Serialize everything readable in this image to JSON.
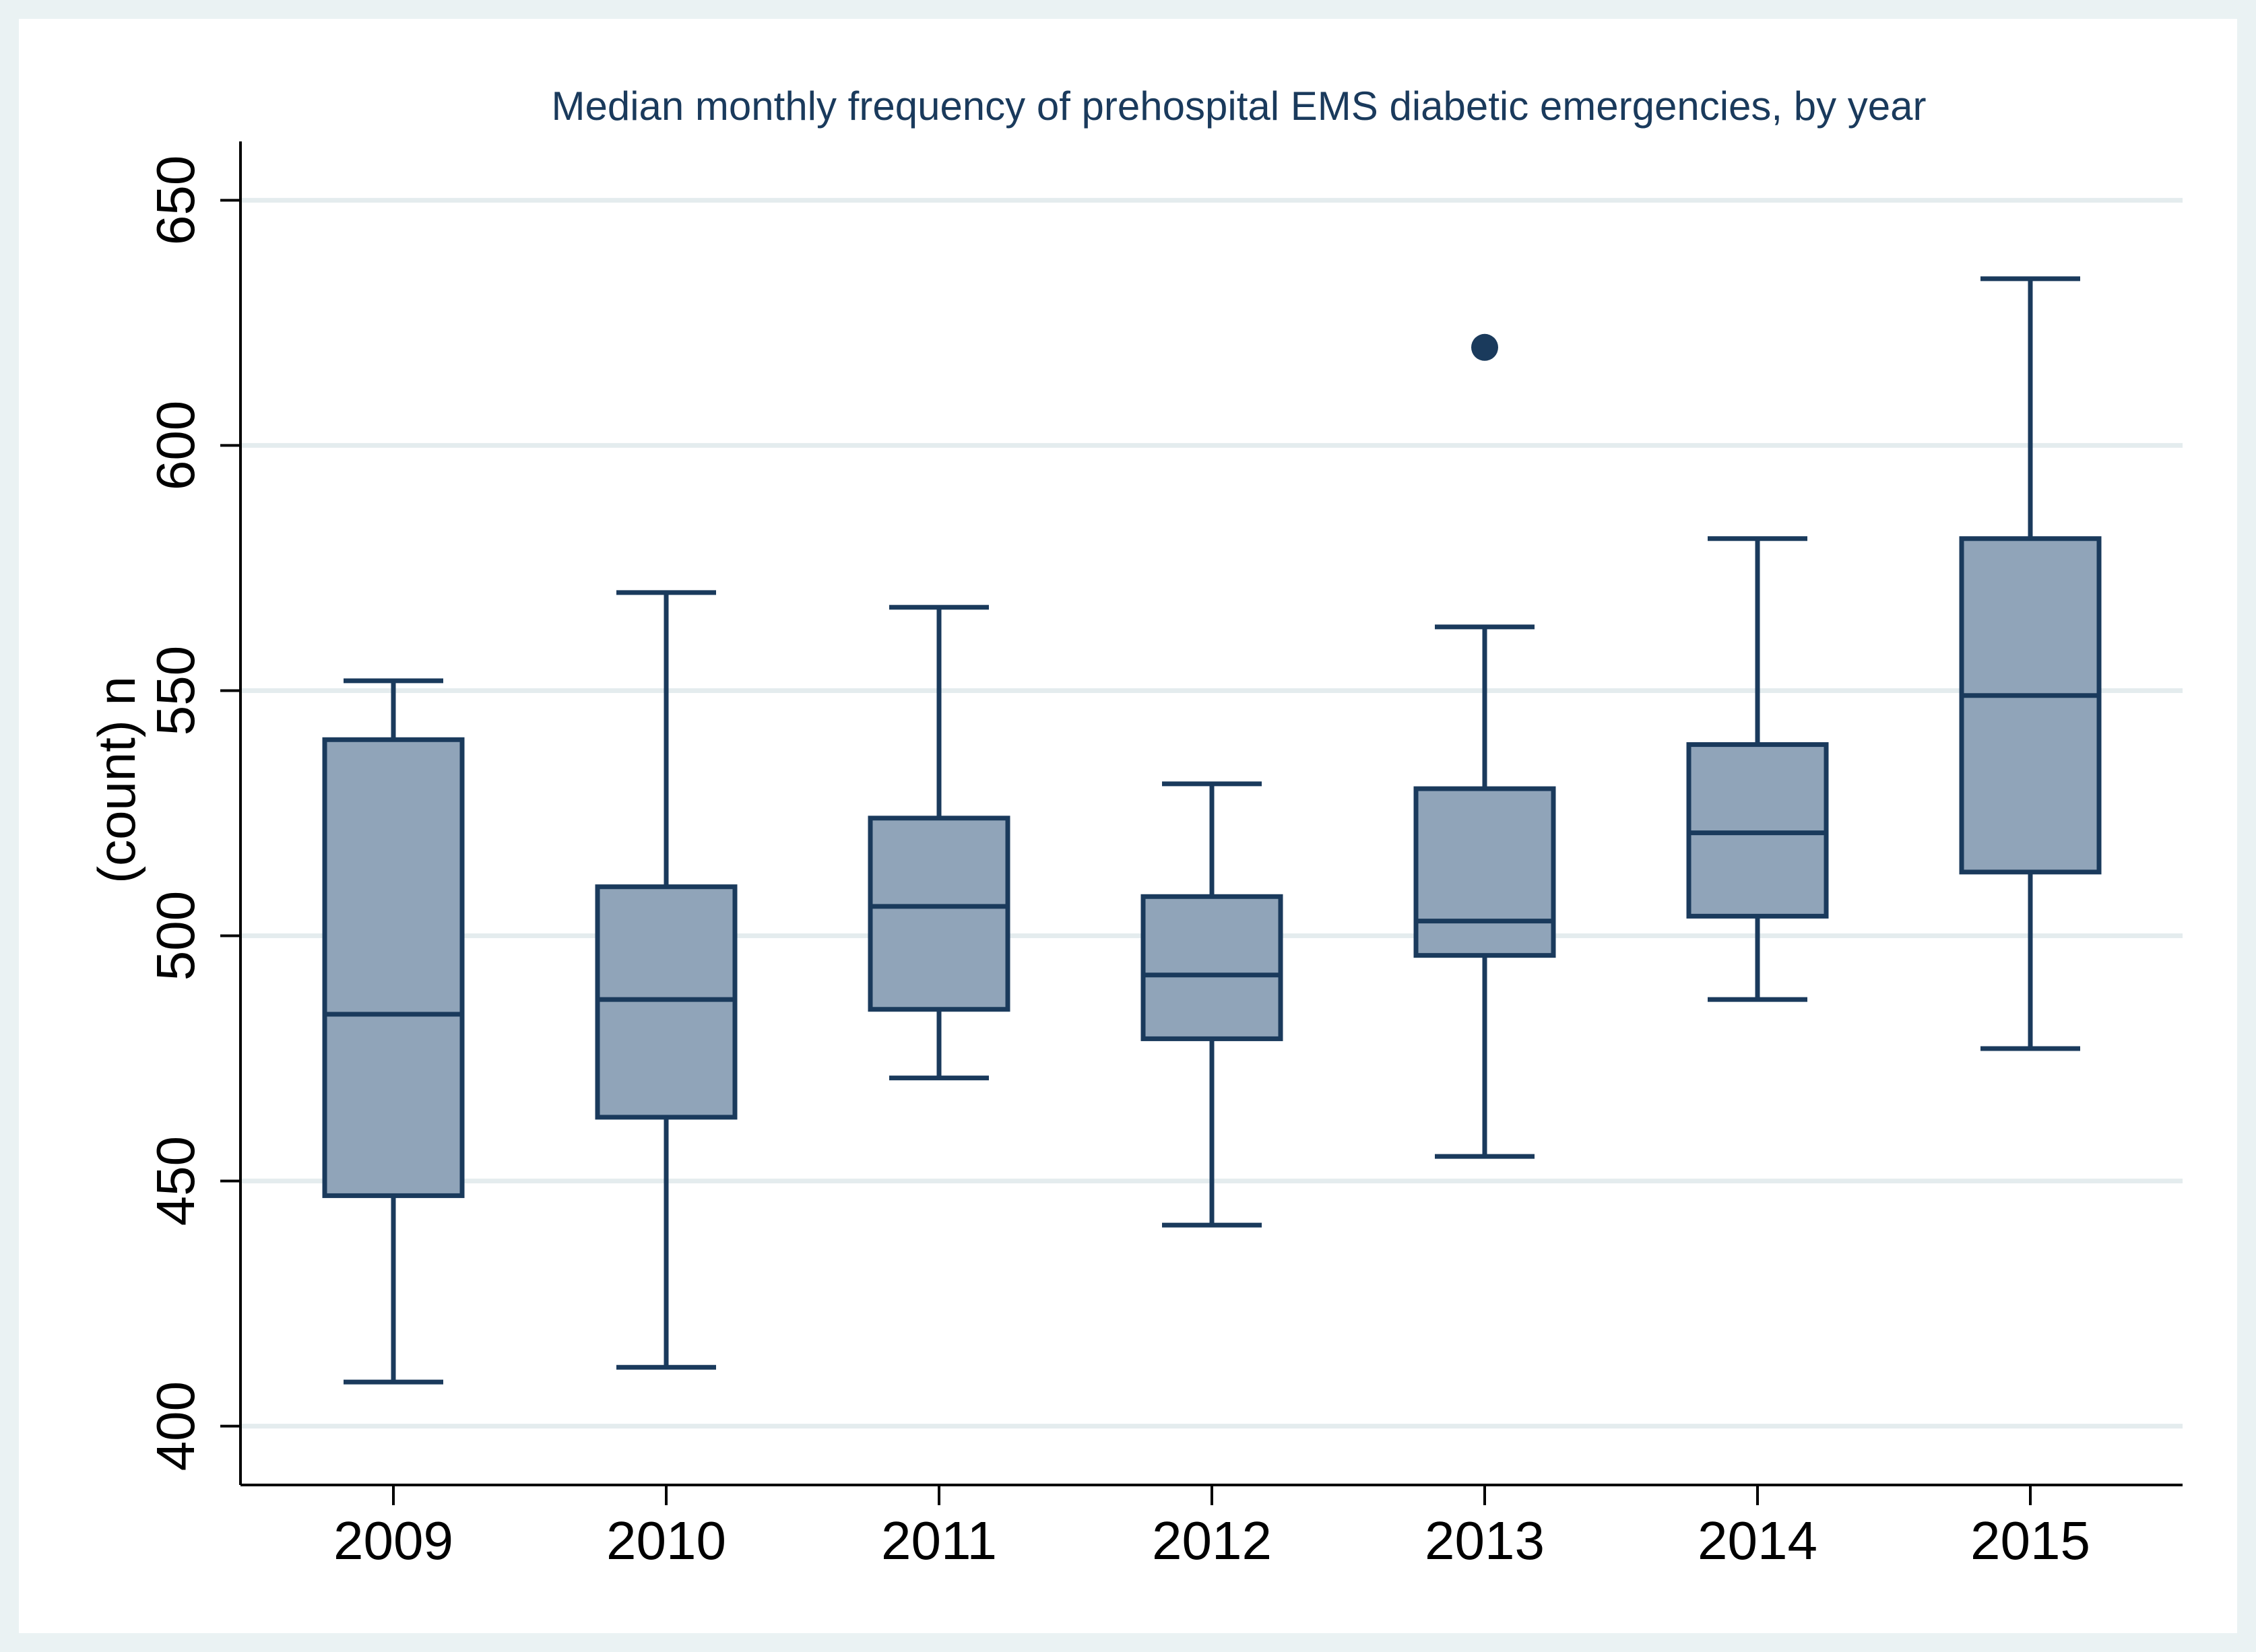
{
  "chart_data": {
    "type": "box",
    "title": "Median monthly frequency of prehospital EMS diabetic emergencies, by year",
    "ylabel": "(count) n",
    "ylim": [
      388,
      662
    ],
    "yticks": [
      400,
      450,
      500,
      550,
      600,
      650
    ],
    "grid": true,
    "categories": [
      "2009",
      "2010",
      "2011",
      "2012",
      "2013",
      "2014",
      "2015"
    ],
    "boxes": [
      {
        "category": "2009",
        "whisker_low": 409,
        "q1": 447,
        "median": 484,
        "q3": 540,
        "whisker_high": 552,
        "outliers": []
      },
      {
        "category": "2010",
        "whisker_low": 412,
        "q1": 463,
        "median": 487,
        "q3": 510,
        "whisker_high": 570,
        "outliers": []
      },
      {
        "category": "2011",
        "whisker_low": 471,
        "q1": 485,
        "median": 506,
        "q3": 524,
        "whisker_high": 567,
        "outliers": []
      },
      {
        "category": "2012",
        "whisker_low": 441,
        "q1": 479,
        "median": 492,
        "q3": 508,
        "whisker_high": 531,
        "outliers": []
      },
      {
        "category": "2013",
        "whisker_low": 455,
        "q1": 496,
        "median": 503,
        "q3": 530,
        "whisker_high": 563,
        "outliers": [
          620
        ]
      },
      {
        "category": "2014",
        "whisker_low": 487,
        "q1": 504,
        "median": 521,
        "q3": 539,
        "whisker_high": 581,
        "outliers": []
      },
      {
        "category": "2015",
        "whisker_low": 477,
        "q1": 513,
        "median": 549,
        "q3": 581,
        "whisker_high": 634,
        "outliers": []
      }
    ],
    "colors": {
      "outer_background": "#eaf2f3",
      "plot_background": "#ffffff",
      "box_fill": "#90a4b9",
      "box_stroke": "#1a3a5c",
      "grid": "#e4ecee",
      "axis": "#000000"
    }
  }
}
